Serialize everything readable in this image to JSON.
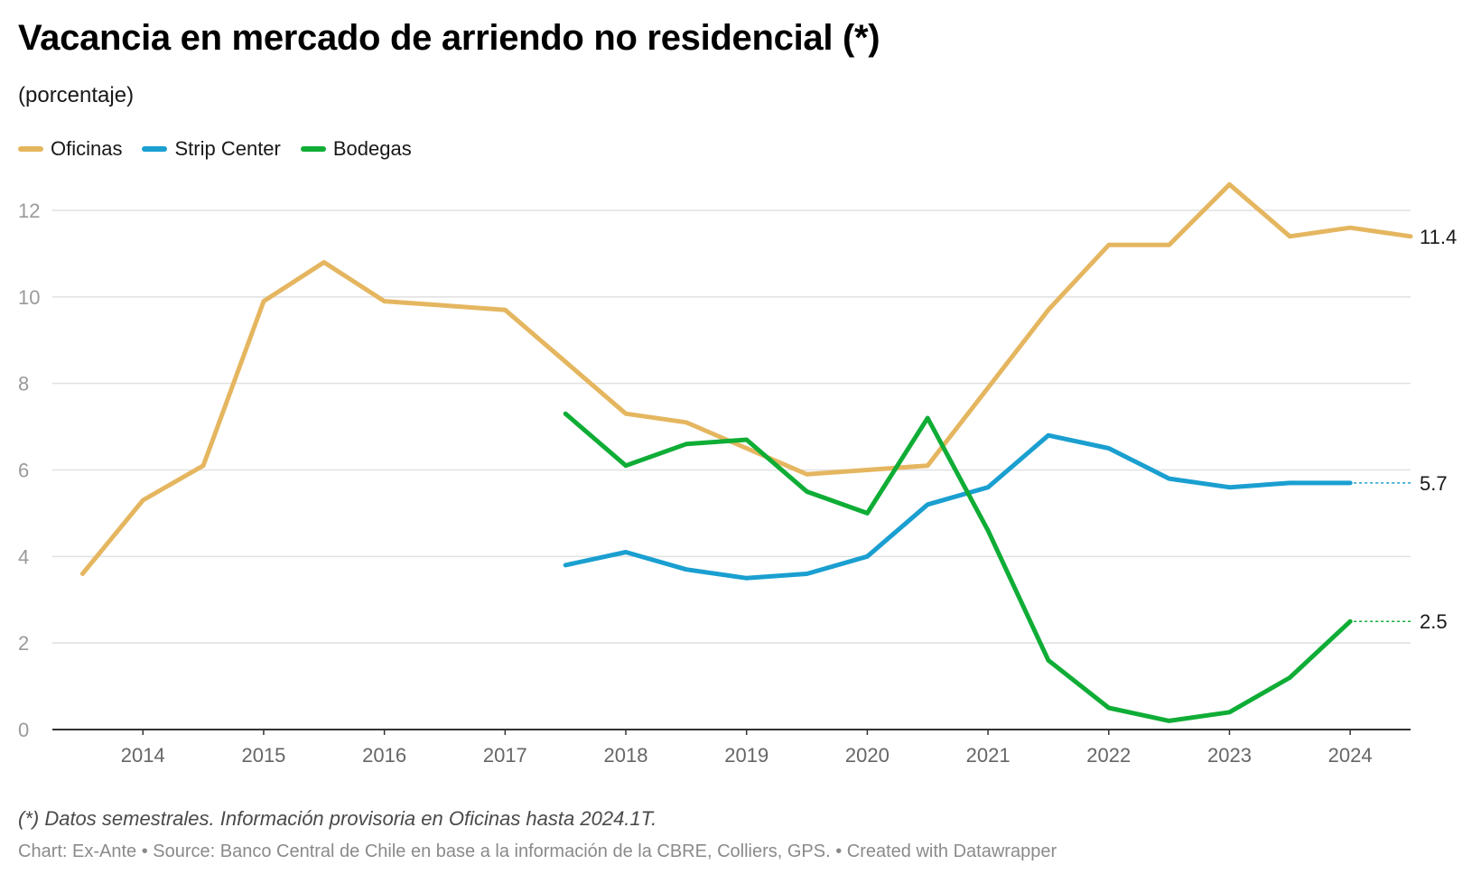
{
  "header": {
    "title": "Vacancia en mercado de arriendo no residencial (*)",
    "subtitle": "(porcentaje)"
  },
  "footer": {
    "note": "(*) Datos semestrales. Información provisoria en Oficinas hasta 2024.1T.",
    "credits": "Chart: Ex-Ante • Source: Banco Central de Chile en base a la información de la CBRE, Colliers, GPS. • Created with Datawrapper"
  },
  "chart_data": {
    "type": "line",
    "title": "Vacancia en mercado de arriendo no residencial (*)",
    "subtitle": "(porcentaje)",
    "legend_position": "top-left",
    "grid": true,
    "xlim": [
      2013.25,
      2024.5
    ],
    "ylim": [
      0,
      12
    ],
    "y_ticks": [
      0,
      2,
      4,
      6,
      8,
      10,
      12
    ],
    "x_ticks": [
      2014,
      2015,
      2016,
      2017,
      2018,
      2019,
      2020,
      2021,
      2022,
      2023,
      2024
    ],
    "x_tick_labels": [
      "2014",
      "2015",
      "2016",
      "2017",
      "2018",
      "2019",
      "2020",
      "2021",
      "2022",
      "2023",
      "2024"
    ],
    "series": [
      {
        "name": "Oficinas",
        "color": "#e5b660",
        "x": [
          2013.5,
          2014.0,
          2014.5,
          2015.0,
          2015.5,
          2016.0,
          2016.5,
          2017.0,
          2017.5,
          2018.0,
          2018.5,
          2019.0,
          2019.5,
          2020.0,
          2020.5,
          2021.0,
          2021.5,
          2022.0,
          2022.5,
          2023.0,
          2023.5,
          2024.0,
          2024.5
        ],
        "values": [
          3.6,
          5.3,
          6.1,
          9.9,
          10.8,
          9.9,
          9.8,
          9.7,
          8.5,
          7.3,
          7.1,
          6.5,
          5.9,
          6.0,
          6.1,
          7.9,
          9.7,
          11.2,
          11.2,
          12.6,
          11.4,
          11.6,
          11.4
        ],
        "end_label": "11.4"
      },
      {
        "name": "Strip Center",
        "color": "#1a9fd0",
        "x": [
          2017.5,
          2018.0,
          2018.5,
          2019.0,
          2019.5,
          2020.0,
          2020.5,
          2021.0,
          2021.5,
          2022.0,
          2022.5,
          2023.0,
          2023.5,
          2024.0
        ],
        "values": [
          3.8,
          4.1,
          3.7,
          3.5,
          3.6,
          4.0,
          5.2,
          5.6,
          6.8,
          6.5,
          5.8,
          5.6,
          5.7,
          5.7
        ],
        "end_label": "5.7"
      },
      {
        "name": "Bodegas",
        "color": "#0fad36",
        "x": [
          2017.5,
          2018.0,
          2018.5,
          2019.0,
          2019.5,
          2020.0,
          2020.5,
          2021.0,
          2021.5,
          2022.0,
          2022.5,
          2023.0,
          2023.5,
          2024.0
        ],
        "values": [
          7.3,
          6.1,
          6.6,
          6.7,
          5.5,
          5.0,
          7.2,
          4.6,
          1.6,
          0.5,
          0.2,
          0.4,
          1.2,
          2.5
        ],
        "end_label": "2.5"
      }
    ]
  }
}
